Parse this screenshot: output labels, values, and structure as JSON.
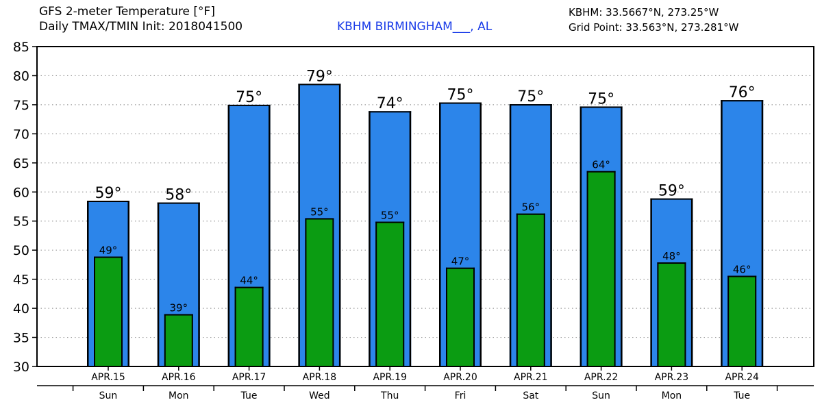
{
  "header": {
    "title_line1": "GFS 2-meter Temperature [°F]",
    "title_line2": "Daily TMAX/TMIN Init: 2018041500",
    "station_label": "KBHM BIRMINGHAM___, AL",
    "station_coords": "KBHM: 33.5667°N, 273.25°W",
    "grid_point": "Grid Point: 33.563°N, 273.281°W"
  },
  "colors": {
    "tmax_bar": "#2c85ea",
    "tmin_bar": "#0b9c12",
    "station_text": "#1a3ce8",
    "grid": "#9a9a9a"
  },
  "chart_data": {
    "type": "bar",
    "title": "GFS 2-meter Temperature [°F]",
    "xlabel": "",
    "ylabel": "",
    "ylim": [
      30,
      85
    ],
    "yticks": [
      30,
      35,
      40,
      45,
      50,
      55,
      60,
      65,
      70,
      75,
      80,
      85
    ],
    "grid": true,
    "degree_suffix": "°",
    "categories": [
      "APR.15",
      "APR.16",
      "APR.17",
      "APR.18",
      "APR.19",
      "APR.20",
      "APR.21",
      "APR.22",
      "APR.23",
      "APR.24"
    ],
    "weekdays": [
      "Sun",
      "Mon",
      "Tue",
      "Wed",
      "Thu",
      "Fri",
      "Sat",
      "Sun",
      "Mon",
      "Tue"
    ],
    "series": [
      {
        "name": "TMAX",
        "values": [
          58.5,
          58.2,
          75.0,
          78.6,
          73.9,
          75.4,
          75.1,
          74.7,
          58.9,
          75.8
        ],
        "labels": [
          "59",
          "58",
          "75",
          "79",
          "74",
          "75",
          "75",
          "75",
          "59",
          "76"
        ]
      },
      {
        "name": "TMIN",
        "values": [
          48.9,
          39.0,
          43.7,
          55.5,
          54.9,
          47.0,
          56.3,
          63.6,
          47.9,
          45.6
        ],
        "labels": [
          "49",
          "39",
          "44",
          "55",
          "55",
          "47",
          "56",
          "64",
          "48",
          "46"
        ]
      }
    ]
  }
}
